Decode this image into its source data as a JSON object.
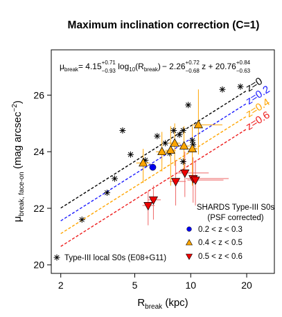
{
  "chart_data": {
    "type": "scatter",
    "title": "Maximum inclination correction (C=1)",
    "xlabel": {
      "main": "R",
      "sub": "break",
      "tail": " (kpc)"
    },
    "ylabel": {
      "main": "μ",
      "sub": "break, face-on",
      "tail": " (mag arcsec",
      "sup": "−2",
      "end": ")"
    },
    "x_scale": "log10",
    "xlim": [
      1.778,
      28.18
    ],
    "ylim": [
      19.7,
      27.6
    ],
    "x_ticks": [
      2,
      5,
      10,
      20
    ],
    "y_ticks": [
      20,
      22,
      24,
      26
    ],
    "grid": false,
    "equation": {
      "lhs_main": "μ",
      "lhs_sub": "break",
      "eq": "= 4.15",
      "a_up": "+0.71",
      "a_dn": "−0.93",
      "log_part": " log",
      "log_sub": "10",
      "log_arg_open": "(R",
      "log_arg_sub": "break",
      "log_arg_close": ")",
      "b": "− 2.26",
      "b_up": "+0.72",
      "b_dn": "−0.68",
      "z_part": " z + 20.76",
      "c_up": "+0.84",
      "c_dn": "−0.63"
    },
    "fit": {
      "a": 4.15,
      "b": -2.26,
      "c": 20.76
    },
    "fit_lines": [
      {
        "z": 0.0,
        "label": "z=0",
        "color": "#000000"
      },
      {
        "z": 0.2,
        "label": "z=0.2",
        "color": "#1a1aff"
      },
      {
        "z": 0.4,
        "label": "z=0.4",
        "color": "#ffa500"
      },
      {
        "z": 0.6,
        "label": "z=0.6",
        "color": "#ee1c1c"
      }
    ],
    "fit_x_range": [
      2.0,
      20.0
    ],
    "local_s0s": {
      "name": "Type-III local S0s (E08+G11)",
      "color": "#000000",
      "points": [
        [
          2.6,
          21.6
        ],
        [
          3.55,
          22.55
        ],
        [
          3.9,
          23.05
        ],
        [
          4.3,
          24.75
        ],
        [
          4.75,
          23.9
        ],
        [
          5.7,
          23.7
        ],
        [
          6.6,
          24.55
        ],
        [
          7.3,
          24.3
        ],
        [
          7.7,
          23.95
        ],
        [
          8.1,
          24.75
        ],
        [
          8.7,
          24.6
        ],
        [
          9.1,
          24.75
        ],
        [
          9.1,
          23.65
        ],
        [
          9.7,
          25.65
        ],
        [
          10.2,
          24.4
        ],
        [
          10.3,
          24.25
        ],
        [
          14.8,
          26.2
        ],
        [
          18.5,
          26.3
        ]
      ]
    },
    "shards_title": [
      "SHARDS Type-III S0s",
      "(PSF corrected)"
    ],
    "series": [
      {
        "name": "0.2 < z < 0.3",
        "marker": "circle",
        "color": "#0000ee",
        "err_color": "#0000ee",
        "points": [
          {
            "x": 6.25,
            "y": 23.45,
            "xlo": 6.25,
            "xhi": 6.25,
            "ylo": 23.45,
            "yhi": 23.45
          }
        ]
      },
      {
        "name": "0.4 < z < 0.5",
        "marker": "triangle-up",
        "color": "#ffa500",
        "err_color": "#ffa500",
        "points": [
          {
            "x": 5.55,
            "y": 23.6,
            "xlo": 5.1,
            "xhi": 6.0,
            "ylo": 22.9,
            "yhi": 24.1
          },
          {
            "x": 7.0,
            "y": 24.0,
            "xlo": 6.5,
            "xhi": 7.5,
            "ylo": 23.3,
            "yhi": 24.7
          },
          {
            "x": 7.8,
            "y": 24.05,
            "xlo": 7.3,
            "xhi": 8.3,
            "ylo": 22.8,
            "yhi": 24.9
          },
          {
            "x": 8.2,
            "y": 24.3,
            "xlo": 7.6,
            "xhi": 8.8,
            "ylo": 23.5,
            "yhi": 25.0
          },
          {
            "x": 9.2,
            "y": 24.2,
            "xlo": 8.5,
            "xhi": 9.9,
            "ylo": 23.3,
            "yhi": 24.9
          },
          {
            "x": 10.2,
            "y": 24.1,
            "xlo": 9.5,
            "xhi": 10.9,
            "ylo": 22.8,
            "yhi": 24.9
          },
          {
            "x": 11.0,
            "y": 24.95,
            "xlo": 10.2,
            "xhi": 14.8,
            "ylo": 23.9,
            "yhi": 26.2
          }
        ]
      },
      {
        "name": "0.5 < z < 0.6",
        "marker": "triangle-down",
        "color": "#ee0000",
        "err_color": "#ee6666",
        "points": [
          {
            "x": 5.9,
            "y": 22.1,
            "xlo": 5.5,
            "xhi": 6.4,
            "ylo": 21.4,
            "yhi": 22.6
          },
          {
            "x": 6.3,
            "y": 22.3,
            "xlo": 5.9,
            "xhi": 6.9,
            "ylo": 21.6,
            "yhi": 22.8
          },
          {
            "x": 8.3,
            "y": 22.95,
            "xlo": 7.7,
            "xhi": 9.4,
            "ylo": 22.1,
            "yhi": 23.7
          },
          {
            "x": 9.3,
            "y": 23.25,
            "xlo": 8.5,
            "xhi": 12.5,
            "ylo": 22.4,
            "yhi": 24.0
          },
          {
            "x": 10.3,
            "y": 23.05,
            "xlo": 9.4,
            "xhi": 16.0,
            "ylo": 22.2,
            "yhi": 23.8
          },
          {
            "x": 10.6,
            "y": 23.0,
            "xlo": 9.6,
            "xhi": 15.0,
            "ylo": 22.1,
            "yhi": 23.7
          }
        ]
      }
    ]
  }
}
